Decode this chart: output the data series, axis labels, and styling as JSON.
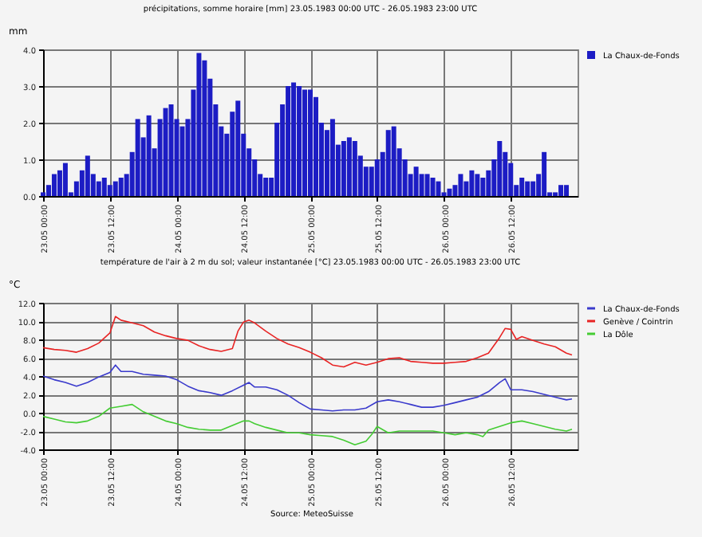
{
  "chart_data": [
    {
      "type": "bar",
      "title": "précipitations, somme horaire [mm]  23.05.1983 00:00 UTC - 26.05.1983 23:00 UTC",
      "ylabel": "mm",
      "x": [
        "1983-05-23T00:00",
        "1983-05-23T01:00",
        "1983-05-23T02:00",
        "1983-05-23T03:00",
        "1983-05-23T04:00",
        "1983-05-23T05:00",
        "1983-05-23T06:00",
        "1983-05-23T07:00",
        "1983-05-23T08:00",
        "1983-05-23T09:00",
        "1983-05-23T10:00",
        "1983-05-23T11:00",
        "1983-05-23T12:00",
        "1983-05-23T13:00",
        "1983-05-23T14:00",
        "1983-05-23T15:00",
        "1983-05-23T16:00",
        "1983-05-23T17:00",
        "1983-05-23T18:00",
        "1983-05-23T19:00",
        "1983-05-23T20:00",
        "1983-05-23T21:00",
        "1983-05-23T22:00",
        "1983-05-23T23:00",
        "1983-05-24T00:00",
        "1983-05-24T01:00",
        "1983-05-24T02:00",
        "1983-05-24T03:00",
        "1983-05-24T04:00",
        "1983-05-24T05:00",
        "1983-05-24T06:00",
        "1983-05-24T07:00",
        "1983-05-24T08:00",
        "1983-05-24T09:00",
        "1983-05-24T10:00",
        "1983-05-24T11:00",
        "1983-05-24T12:00",
        "1983-05-24T13:00",
        "1983-05-24T14:00",
        "1983-05-24T15:00",
        "1983-05-24T16:00",
        "1983-05-24T17:00",
        "1983-05-24T18:00",
        "1983-05-24T19:00",
        "1983-05-24T20:00",
        "1983-05-24T21:00",
        "1983-05-24T22:00",
        "1983-05-24T23:00",
        "1983-05-25T00:00",
        "1983-05-25T01:00",
        "1983-05-25T02:00",
        "1983-05-25T03:00",
        "1983-05-25T04:00",
        "1983-05-25T05:00",
        "1983-05-25T06:00",
        "1983-05-25T07:00",
        "1983-05-25T08:00",
        "1983-05-25T09:00",
        "1983-05-25T10:00",
        "1983-05-25T11:00",
        "1983-05-25T12:00",
        "1983-05-25T13:00",
        "1983-05-25T14:00",
        "1983-05-25T15:00",
        "1983-05-25T16:00",
        "1983-05-25T17:00",
        "1983-05-25T18:00",
        "1983-05-25T19:00",
        "1983-05-25T20:00",
        "1983-05-25T21:00",
        "1983-05-25T22:00",
        "1983-05-25T23:00",
        "1983-05-26T00:00",
        "1983-05-26T01:00",
        "1983-05-26T02:00",
        "1983-05-26T03:00",
        "1983-05-26T04:00",
        "1983-05-26T05:00",
        "1983-05-26T06:00",
        "1983-05-26T07:00",
        "1983-05-26T08:00",
        "1983-05-26T09:00",
        "1983-05-26T10:00",
        "1983-05-26T11:00",
        "1983-05-26T12:00",
        "1983-05-26T13:00",
        "1983-05-26T14:00",
        "1983-05-26T15:00",
        "1983-05-26T16:00",
        "1983-05-26T17:00",
        "1983-05-26T18:00",
        "1983-05-26T19:00",
        "1983-05-26T20:00",
        "1983-05-26T21:00",
        "1983-05-26T22:00",
        "1983-05-26T23:00"
      ],
      "series": [
        {
          "name": "La Chaux-de-Fonds",
          "color": "#1c1cc4",
          "values": [
            0.1,
            0.3,
            0.6,
            0.7,
            0.9,
            0.1,
            0.4,
            0.7,
            1.1,
            0.6,
            0.4,
            0.5,
            0.3,
            0.4,
            0.5,
            0.6,
            1.2,
            2.1,
            1.6,
            2.2,
            1.3,
            2.1,
            2.4,
            2.5,
            2.1,
            1.9,
            2.1,
            2.9,
            3.9,
            3.7,
            3.2,
            2.5,
            1.9,
            1.7,
            2.3,
            2.6,
            1.7,
            1.3,
            1.0,
            0.6,
            0.5,
            0.5,
            2.0,
            2.5,
            3.0,
            3.1,
            3.0,
            2.9,
            2.9,
            2.7,
            2.0,
            1.8,
            2.1,
            1.4,
            1.5,
            1.6,
            1.5,
            1.1,
            0.8,
            0.8,
            1.0,
            1.2,
            1.8,
            1.9,
            1.3,
            1.0,
            0.6,
            0.8,
            0.6,
            0.6,
            0.5,
            0.4,
            0.1,
            0.2,
            0.3,
            0.6,
            0.4,
            0.7,
            0.6,
            0.5,
            0.7,
            1.0,
            1.5,
            1.2,
            0.9,
            0.3,
            0.5,
            0.4,
            0.4,
            0.6,
            1.2,
            0.1,
            0.1,
            0.3,
            0.3,
            0.0
          ]
        }
      ],
      "xlim": [
        "1983-05-23T00:00",
        "1983-05-27T00:00"
      ],
      "xticks": [
        {
          "value": "1983-05-23T00:00",
          "label": "23.05 00:00"
        },
        {
          "value": "1983-05-23T12:00",
          "label": "23.05 12:00"
        },
        {
          "value": "1983-05-24T00:00",
          "label": "24.05 00:00"
        },
        {
          "value": "1983-05-24T12:00",
          "label": "24.05 12:00"
        },
        {
          "value": "1983-05-25T00:00",
          "label": "25.05 00:00"
        },
        {
          "value": "1983-05-25T12:00",
          "label": "25.05 12:00"
        },
        {
          "value": "1983-05-26T00:00",
          "label": "26.05 00:00"
        },
        {
          "value": "1983-05-26T12:00",
          "label": "26.05 12:00"
        }
      ],
      "ylim": [
        0,
        4
      ],
      "yticks": [
        {
          "value": 0,
          "label": "0.0"
        },
        {
          "value": 1,
          "label": "1.0"
        },
        {
          "value": 2,
          "label": "2.0"
        },
        {
          "value": 3,
          "label": "3.0"
        },
        {
          "value": 4,
          "label": "4.0"
        }
      ],
      "grid": true,
      "legend": "right"
    },
    {
      "type": "line",
      "title": "température de l'air à 2 m du sol; valeur instantanée [°C]  23.05.1983 00:00 UTC - 26.05.1983 23:00 UTC",
      "ylabel": "°C",
      "series": [
        {
          "name": "La Chaux-de-Fonds",
          "color": "#3a3acc",
          "x": [
            "1983-05-23T00:00",
            "1983-05-23T02:00",
            "1983-05-23T04:00",
            "1983-05-23T06:00",
            "1983-05-23T08:00",
            "1983-05-23T10:00",
            "1983-05-23T12:00",
            "1983-05-23T13:00",
            "1983-05-23T14:00",
            "1983-05-23T16:00",
            "1983-05-23T18:00",
            "1983-05-23T20:00",
            "1983-05-23T22:00",
            "1983-05-24T00:00",
            "1983-05-24T02:00",
            "1983-05-24T04:00",
            "1983-05-24T06:00",
            "1983-05-24T08:00",
            "1983-05-24T10:00",
            "1983-05-24T12:00",
            "1983-05-24T13:00",
            "1983-05-24T14:00",
            "1983-05-24T16:00",
            "1983-05-24T18:00",
            "1983-05-24T20:00",
            "1983-05-24T22:00",
            "1983-05-25T00:00",
            "1983-05-25T02:00",
            "1983-05-25T04:00",
            "1983-05-25T06:00",
            "1983-05-25T08:00",
            "1983-05-25T10:00",
            "1983-05-25T12:00",
            "1983-05-25T14:00",
            "1983-05-25T16:00",
            "1983-05-25T18:00",
            "1983-05-25T20:00",
            "1983-05-25T22:00",
            "1983-05-26T00:00",
            "1983-05-26T02:00",
            "1983-05-26T04:00",
            "1983-05-26T06:00",
            "1983-05-26T08:00",
            "1983-05-26T10:00",
            "1983-05-26T11:00",
            "1983-05-26T12:00",
            "1983-05-26T14:00",
            "1983-05-26T16:00",
            "1983-05-26T18:00",
            "1983-05-26T20:00",
            "1983-05-26T22:00",
            "1983-05-26T23:00"
          ],
          "values": [
            4.0,
            3.6,
            3.3,
            2.9,
            3.3,
            3.9,
            4.4,
            5.2,
            4.5,
            4.5,
            4.2,
            4.1,
            4.0,
            3.6,
            2.9,
            2.4,
            2.2,
            1.9,
            2.4,
            3.0,
            3.3,
            2.8,
            2.8,
            2.5,
            1.9,
            1.1,
            0.4,
            0.3,
            0.2,
            0.3,
            0.3,
            0.5,
            1.2,
            1.4,
            1.2,
            0.9,
            0.6,
            0.6,
            0.8,
            1.1,
            1.4,
            1.7,
            2.3,
            3.3,
            3.7,
            2.5,
            2.5,
            2.3,
            2.0,
            1.7,
            1.4,
            1.5
          ]
        },
        {
          "name": "Genève / Cointrin",
          "color": "#e82424",
          "x": [
            "1983-05-23T00:00",
            "1983-05-23T02:00",
            "1983-05-23T04:00",
            "1983-05-23T06:00",
            "1983-05-23T08:00",
            "1983-05-23T10:00",
            "1983-05-23T12:00",
            "1983-05-23T13:00",
            "1983-05-23T14:00",
            "1983-05-23T16:00",
            "1983-05-23T18:00",
            "1983-05-23T20:00",
            "1983-05-23T22:00",
            "1983-05-24T00:00",
            "1983-05-24T02:00",
            "1983-05-24T04:00",
            "1983-05-24T06:00",
            "1983-05-24T08:00",
            "1983-05-24T10:00",
            "1983-05-24T11:00",
            "1983-05-24T12:00",
            "1983-05-24T13:00",
            "1983-05-24T14:00",
            "1983-05-24T16:00",
            "1983-05-24T18:00",
            "1983-05-24T20:00",
            "1983-05-24T22:00",
            "1983-05-25T00:00",
            "1983-05-25T02:00",
            "1983-05-25T04:00",
            "1983-05-25T06:00",
            "1983-05-25T08:00",
            "1983-05-25T10:00",
            "1983-05-25T12:00",
            "1983-05-25T14:00",
            "1983-05-25T16:00",
            "1983-05-25T18:00",
            "1983-05-25T20:00",
            "1983-05-25T22:00",
            "1983-05-26T00:00",
            "1983-05-26T02:00",
            "1983-05-26T04:00",
            "1983-05-26T06:00",
            "1983-05-26T08:00",
            "1983-05-26T10:00",
            "1983-05-26T11:00",
            "1983-05-26T12:00",
            "1983-05-26T13:00",
            "1983-05-26T14:00",
            "1983-05-26T16:00",
            "1983-05-26T18:00",
            "1983-05-26T20:00",
            "1983-05-26T22:00",
            "1983-05-26T23:00"
          ],
          "values": [
            7.1,
            6.9,
            6.8,
            6.6,
            7.0,
            7.6,
            8.7,
            10.5,
            10.1,
            9.8,
            9.5,
            8.8,
            8.4,
            8.1,
            7.9,
            7.3,
            6.9,
            6.7,
            7.0,
            8.9,
            9.9,
            10.1,
            9.8,
            8.9,
            8.1,
            7.5,
            7.1,
            6.6,
            6.0,
            5.2,
            5.0,
            5.5,
            5.2,
            5.5,
            5.9,
            6.0,
            5.6,
            5.5,
            5.4,
            5.4,
            5.5,
            5.6,
            6.0,
            6.5,
            8.2,
            9.2,
            9.1,
            8.0,
            8.3,
            7.9,
            7.5,
            7.2,
            6.5,
            6.3
          ]
        },
        {
          "name": "La Dôle",
          "color": "#44cc33",
          "x": [
            "1983-05-23T00:00",
            "1983-05-23T02:00",
            "1983-05-23T04:00",
            "1983-05-23T06:00",
            "1983-05-23T08:00",
            "1983-05-23T10:00",
            "1983-05-23T12:00",
            "1983-05-23T14:00",
            "1983-05-23T16:00",
            "1983-05-23T18:00",
            "1983-05-23T20:00",
            "1983-05-23T22:00",
            "1983-05-24T00:00",
            "1983-05-24T02:00",
            "1983-05-24T04:00",
            "1983-05-24T06:00",
            "1983-05-24T08:00",
            "1983-05-24T10:00",
            "1983-05-24T12:00",
            "1983-05-24T13:00",
            "1983-05-24T14:00",
            "1983-05-24T16:00",
            "1983-05-24T18:00",
            "1983-05-24T20:00",
            "1983-05-24T22:00",
            "1983-05-25T00:00",
            "1983-05-25T02:00",
            "1983-05-25T04:00",
            "1983-05-25T06:00",
            "1983-05-25T08:00",
            "1983-05-25T10:00",
            "1983-05-25T11:00",
            "1983-05-25T12:00",
            "1983-05-25T14:00",
            "1983-05-25T16:00",
            "1983-05-25T18:00",
            "1983-05-25T20:00",
            "1983-05-25T22:00",
            "1983-05-26T00:00",
            "1983-05-26T02:00",
            "1983-05-26T04:00",
            "1983-05-26T06:00",
            "1983-05-26T07:00",
            "1983-05-26T08:00",
            "1983-05-26T10:00",
            "1983-05-26T12:00",
            "1983-05-26T14:00",
            "1983-05-26T16:00",
            "1983-05-26T18:00",
            "1983-05-26T20:00",
            "1983-05-26T22:00",
            "1983-05-26T23:00"
          ],
          "values": [
            -0.4,
            -0.7,
            -1.0,
            -1.1,
            -0.9,
            -0.4,
            0.5,
            0.7,
            0.9,
            0.1,
            -0.4,
            -0.9,
            -1.2,
            -1.6,
            -1.8,
            -1.9,
            -1.9,
            -1.4,
            -0.9,
            -0.9,
            -1.2,
            -1.6,
            -1.9,
            -2.2,
            -2.2,
            -2.4,
            -2.5,
            -2.6,
            -3.0,
            -3.5,
            -3.1,
            -2.4,
            -1.5,
            -2.2,
            -2.0,
            -2.0,
            -2.0,
            -2.0,
            -2.2,
            -2.4,
            -2.2,
            -2.4,
            -2.6,
            -1.9,
            -1.5,
            -1.1,
            -0.9,
            -1.2,
            -1.5,
            -1.8,
            -2.0,
            -1.8
          ]
        }
      ],
      "xlim": [
        "1983-05-23T00:00",
        "1983-05-27T00:00"
      ],
      "xticks": [
        {
          "value": "1983-05-23T00:00",
          "label": "23.05 00:00"
        },
        {
          "value": "1983-05-23T12:00",
          "label": "23.05 12:00"
        },
        {
          "value": "1983-05-24T00:00",
          "label": "24.05 00:00"
        },
        {
          "value": "1983-05-24T12:00",
          "label": "24.05 12:00"
        },
        {
          "value": "1983-05-25T00:00",
          "label": "25.05 00:00"
        },
        {
          "value": "1983-05-25T12:00",
          "label": "25.05 12:00"
        },
        {
          "value": "1983-05-26T00:00",
          "label": "26.05 00:00"
        },
        {
          "value": "1983-05-26T12:00",
          "label": "26.05 12:00"
        }
      ],
      "ylim": [
        -4,
        12
      ],
      "yticks": [
        {
          "value": -4,
          "label": "-4.0"
        },
        {
          "value": -2,
          "label": "-2.0"
        },
        {
          "value": 0,
          "label": "0.0"
        },
        {
          "value": 2,
          "label": "2.0"
        },
        {
          "value": 4,
          "label": "4.0"
        },
        {
          "value": 6,
          "label": "6.0"
        },
        {
          "value": 8,
          "label": "8.0"
        },
        {
          "value": 10,
          "label": "10.0"
        },
        {
          "value": 12,
          "label": "12.0"
        }
      ],
      "grid": true,
      "legend": "right",
      "annotations": [
        "Source: MeteoSuisse"
      ]
    }
  ]
}
